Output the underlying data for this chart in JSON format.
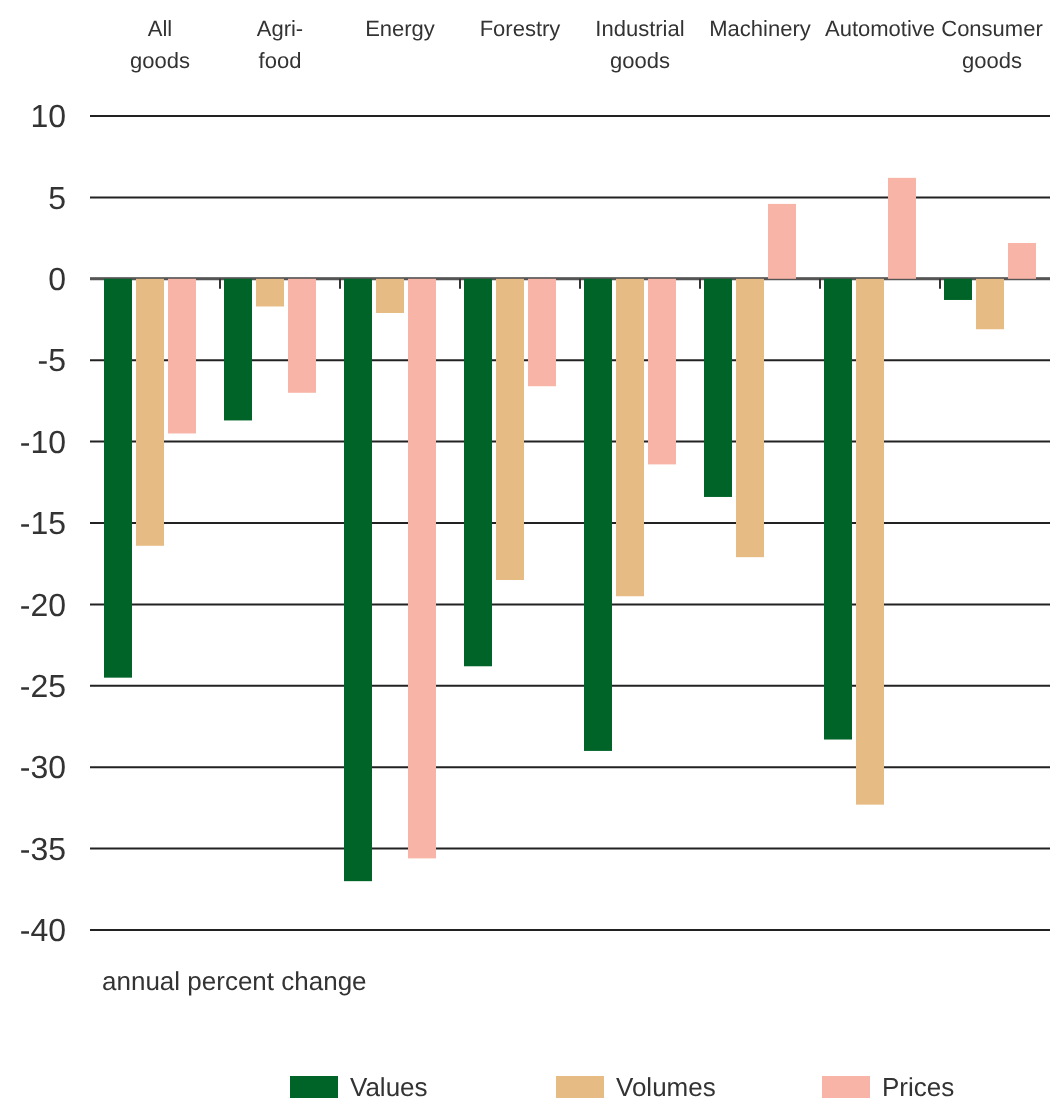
{
  "chart_data": {
    "type": "bar",
    "annotations": [
      "annual percent change"
    ],
    "categories": [
      "All goods",
      "Agri-food",
      "Energy",
      "Forestry",
      "Industrial goods",
      "Machinery",
      "Automotive",
      "Consumer goods"
    ],
    "series": [
      {
        "name": "Values",
        "color": "#006428",
        "values": [
          -24.5,
          -8.7,
          -37.0,
          -23.8,
          -29.0,
          -13.4,
          -28.3,
          -1.3
        ]
      },
      {
        "name": "Volumes",
        "color": "#e6bb84",
        "values": [
          -16.4,
          -1.7,
          -2.1,
          -18.5,
          -19.5,
          -17.1,
          -32.3,
          -3.1
        ]
      },
      {
        "name": "Prices",
        "color": "#f8b4a6",
        "values": [
          -9.5,
          -7.0,
          -35.6,
          -6.6,
          -11.4,
          4.6,
          6.2,
          2.2
        ]
      }
    ],
    "ylim": [
      -40,
      10
    ],
    "yticks": [
      10,
      5,
      0,
      -5,
      -10,
      -15,
      -20,
      -25,
      -30,
      -35,
      -40
    ],
    "grid": "y",
    "legend": "bottom"
  }
}
